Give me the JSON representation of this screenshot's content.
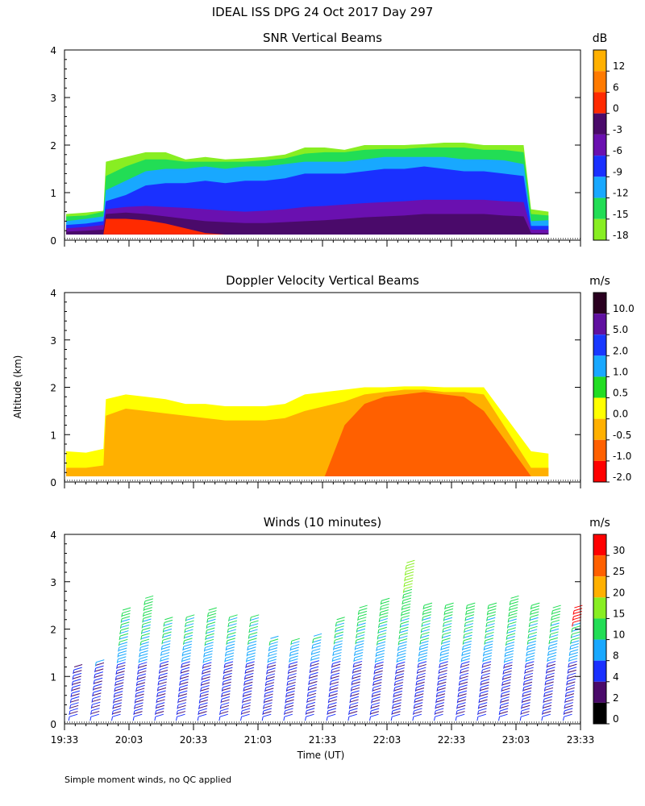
{
  "figure": {
    "title": "IDEAL ISS DPG  24 Oct 2017 Day 297",
    "ylabel": "Altitude (km)",
    "xlabel": "Time (UT)",
    "footnote": "Simple moment winds, no QC applied"
  },
  "chart_data": [
    {
      "id": "snr",
      "type": "heatmap",
      "title": "SNR Vertical Beams",
      "ylim": [
        0,
        4
      ],
      "yticks": [
        "0",
        "1",
        "2",
        "3",
        "4"
      ],
      "x_range": [
        "19:33",
        "23:33"
      ],
      "colorbar": {
        "unit": "dB",
        "labels": [
          "12",
          "6",
          "0",
          "-3",
          "-6",
          "-9",
          "-12",
          "-15",
          "-18"
        ],
        "colors": [
          "#ffb000",
          "#ff7a00",
          "#ff2a00",
          "#4a0a6a",
          "#6a10b0",
          "#1a30ff",
          "#18a8ff",
          "#22dd55",
          "#88ee22"
        ]
      },
      "series": [
        {
          "name": "-18",
          "color": "#88ee22",
          "values": [
            0.55,
            0.58,
            0.62,
            1.65,
            1.75,
            1.85,
            1.85,
            1.7,
            1.75,
            1.7,
            1.72,
            1.75,
            1.8,
            1.95,
            1.95,
            1.9,
            2.0,
            2.0,
            2.0,
            2.02,
            2.05,
            2.05,
            2.0,
            2.0,
            2.0,
            0.65,
            0.6
          ]
        },
        {
          "name": "-15",
          "color": "#22dd55",
          "values": [
            0.5,
            0.52,
            0.6,
            1.35,
            1.55,
            1.7,
            1.7,
            1.65,
            1.65,
            1.65,
            1.65,
            1.68,
            1.72,
            1.82,
            1.85,
            1.85,
            1.9,
            1.92,
            1.92,
            1.95,
            1.95,
            1.95,
            1.9,
            1.9,
            1.85,
            0.55,
            0.52
          ]
        },
        {
          "name": "-12",
          "color": "#18a8ff",
          "values": [
            0.4,
            0.45,
            0.5,
            1.05,
            1.25,
            1.45,
            1.5,
            1.5,
            1.55,
            1.5,
            1.55,
            1.55,
            1.6,
            1.65,
            1.65,
            1.65,
            1.7,
            1.75,
            1.75,
            1.75,
            1.75,
            1.7,
            1.7,
            1.68,
            1.6,
            0.4,
            0.42
          ]
        },
        {
          "name": "-9",
          "color": "#1a30ff",
          "values": [
            0.32,
            0.35,
            0.4,
            0.82,
            0.95,
            1.15,
            1.2,
            1.2,
            1.25,
            1.2,
            1.25,
            1.25,
            1.3,
            1.4,
            1.4,
            1.4,
            1.45,
            1.5,
            1.5,
            1.55,
            1.5,
            1.45,
            1.45,
            1.4,
            1.35,
            0.3,
            0.3
          ]
        },
        {
          "name": "-6",
          "color": "#6a10b0",
          "values": [
            0.25,
            0.28,
            0.32,
            0.65,
            0.7,
            0.72,
            0.7,
            0.68,
            0.65,
            0.62,
            0.6,
            0.62,
            0.65,
            0.7,
            0.72,
            0.75,
            0.78,
            0.8,
            0.82,
            0.85,
            0.85,
            0.85,
            0.85,
            0.82,
            0.8,
            0.22,
            0.22
          ]
        },
        {
          "name": "-3",
          "color": "#4a0a6a",
          "values": [
            0.18,
            0.2,
            0.22,
            0.55,
            0.58,
            0.55,
            0.5,
            0.45,
            0.4,
            0.38,
            0.36,
            0.36,
            0.38,
            0.4,
            0.42,
            0.45,
            0.48,
            0.5,
            0.52,
            0.55,
            0.55,
            0.55,
            0.55,
            0.52,
            0.5,
            0.15,
            0.15
          ]
        },
        {
          "name": "0",
          "color": "#ff2a00",
          "values": [
            0,
            0,
            0,
            0.45,
            0.45,
            0.42,
            0.35,
            0.25,
            0.15,
            0.1,
            0,
            0,
            0,
            0,
            0,
            0,
            0,
            0,
            0,
            0,
            0,
            0,
            0,
            0,
            0,
            0,
            0
          ]
        }
      ],
      "x_fraction": [
        0.0,
        0.04,
        0.075,
        0.08,
        0.12,
        0.16,
        0.2,
        0.24,
        0.28,
        0.32,
        0.36,
        0.4,
        0.44,
        0.48,
        0.52,
        0.56,
        0.6,
        0.64,
        0.68,
        0.72,
        0.76,
        0.8,
        0.84,
        0.88,
        0.92,
        0.935,
        0.97
      ]
    },
    {
      "id": "doppler",
      "type": "heatmap",
      "title": "Doppler Velocity Vertical Beams",
      "ylim": [
        0,
        4
      ],
      "yticks": [
        "0",
        "1",
        "2",
        "3",
        "4"
      ],
      "x_range": [
        "19:33",
        "23:33"
      ],
      "colorbar": {
        "unit": "m/s",
        "labels": [
          "10.0",
          "5.0",
          "2.0",
          "1.0",
          "0.5",
          "0.0",
          "-0.5",
          "-1.0",
          "-2.0"
        ],
        "colors": [
          "#2a0020",
          "#6010a0",
          "#1838ff",
          "#18a8ff",
          "#22dd22",
          "#ffff00",
          "#ffb000",
          "#ff6000",
          "#ff0000"
        ]
      },
      "series": [
        {
          "name": "0.0",
          "color": "#ffff00",
          "values": [
            0.65,
            0.62,
            0.7,
            1.75,
            1.85,
            1.8,
            1.75,
            1.65,
            1.65,
            1.6,
            1.6,
            1.6,
            1.65,
            1.85,
            1.9,
            1.95,
            2.0,
            2.0,
            2.02,
            2.02,
            2.0,
            2.0,
            2.0,
            0.65,
            0.6
          ]
        },
        {
          "name": "-0.5",
          "color": "#ffb000",
          "values": [
            0.3,
            0.3,
            0.35,
            1.4,
            1.55,
            1.5,
            1.45,
            1.4,
            1.35,
            1.3,
            1.3,
            1.3,
            1.35,
            1.5,
            1.6,
            1.7,
            1.85,
            1.9,
            1.95,
            1.95,
            1.9,
            1.9,
            1.85,
            0.3,
            0.3
          ]
        },
        {
          "name": "-1.0",
          "color": "#ff6000",
          "values": [
            0,
            0,
            0,
            0,
            0,
            0,
            0,
            0,
            0,
            0,
            0,
            0,
            0,
            0,
            0,
            1.2,
            1.65,
            1.8,
            1.85,
            1.9,
            1.85,
            1.8,
            1.5,
            0,
            0
          ]
        }
      ],
      "x_fraction": [
        0.0,
        0.04,
        0.075,
        0.08,
        0.12,
        0.16,
        0.2,
        0.24,
        0.28,
        0.32,
        0.36,
        0.4,
        0.44,
        0.48,
        0.52,
        0.56,
        0.6,
        0.64,
        0.68,
        0.72,
        0.76,
        0.8,
        0.84,
        0.935,
        0.97
      ]
    },
    {
      "id": "winds",
      "type": "scatter",
      "title": "Winds (10 minutes)",
      "ylim": [
        0,
        4
      ],
      "yticks": [
        "0",
        "1",
        "2",
        "3",
        "4"
      ],
      "xlim": [
        "19:33",
        "23:33"
      ],
      "xticks": [
        "19:33",
        "20:03",
        "20:33",
        "21:03",
        "21:33",
        "22:03",
        "22:33",
        "23:03",
        "23:33"
      ],
      "colorbar": {
        "unit": "m/s",
        "labels": [
          "30",
          "25",
          "20",
          "15",
          "10",
          "8",
          "4",
          "2",
          "0"
        ],
        "colors": [
          "#ff0000",
          "#ff6000",
          "#ffb000",
          "#88ee22",
          "#22dd55",
          "#18a8ff",
          "#1a30ff",
          "#4a0a6a",
          "#000000"
        ]
      },
      "profiles": [
        {
          "time": "19:38",
          "top": 1.2
        },
        {
          "time": "19:48",
          "top": 1.3
        },
        {
          "time": "19:58",
          "top": 2.4
        },
        {
          "time": "20:08",
          "top": 2.65
        },
        {
          "time": "20:18",
          "top": 2.2
        },
        {
          "time": "20:28",
          "top": 2.25
        },
        {
          "time": "20:38",
          "top": 2.4
        },
        {
          "time": "20:48",
          "top": 2.25
        },
        {
          "time": "20:58",
          "top": 2.25
        },
        {
          "time": "21:08",
          "top": 1.8
        },
        {
          "time": "21:18",
          "top": 1.75
        },
        {
          "time": "21:28",
          "top": 1.85
        },
        {
          "time": "21:38",
          "top": 2.2
        },
        {
          "time": "21:48",
          "top": 2.45
        },
        {
          "time": "21:58",
          "top": 2.6
        },
        {
          "time": "22:08",
          "top": 3.4
        },
        {
          "time": "22:18",
          "top": 2.5
        },
        {
          "time": "22:28",
          "top": 2.5
        },
        {
          "time": "22:38",
          "top": 2.5
        },
        {
          "time": "22:48",
          "top": 2.5
        },
        {
          "time": "22:58",
          "top": 2.65
        },
        {
          "time": "23:08",
          "top": 2.5
        },
        {
          "time": "23:18",
          "top": 2.45
        },
        {
          "time": "23:28",
          "top": 2.45
        }
      ]
    }
  ]
}
